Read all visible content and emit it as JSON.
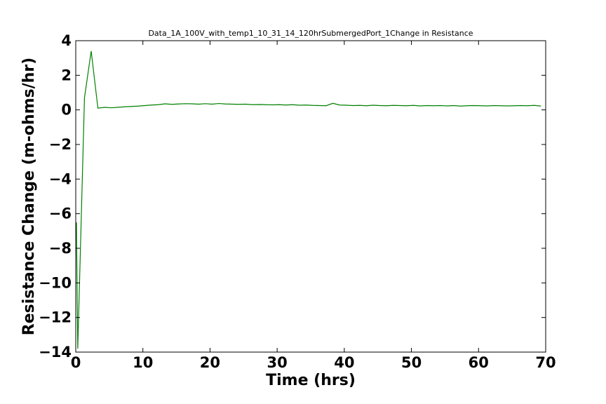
{
  "chart_data": {
    "type": "line",
    "title": "Data_1A_100V_with_temp1_10_31_14_120hrSubmergedPort_1Change in Resistance",
    "xlabel": "Time (hrs)",
    "ylabel": "Resistance Change (m-ohms/hr)",
    "xlim": [
      0,
      70
    ],
    "ylim": [
      -14,
      4
    ],
    "xticks": [
      0,
      10,
      20,
      30,
      40,
      50,
      60,
      70
    ],
    "yticks": [
      4,
      2,
      0,
      -2,
      -4,
      -6,
      -8,
      -10,
      -12,
      -14
    ],
    "grid": false,
    "series": [
      {
        "color": "#008000",
        "x": [
          0.1,
          0.3,
          1.3,
          2.3,
          3.3,
          4.3,
          5.3,
          6.3,
          7.3,
          8.3,
          9.3,
          10.3,
          11.3,
          12.3,
          13.3,
          14.3,
          15.3,
          16.3,
          17.3,
          18.3,
          19.3,
          20.3,
          21.3,
          22.3,
          23.3,
          24.3,
          25.3,
          26.3,
          27.3,
          28.3,
          29.3,
          30.3,
          31.3,
          32.3,
          33.3,
          34.3,
          35.3,
          36.3,
          37.3,
          38.3,
          39.3,
          40.3,
          41.3,
          42.3,
          43.3,
          44.3,
          45.3,
          46.3,
          47.3,
          48.3,
          49.3,
          50.3,
          51.3,
          52.3,
          53.3,
          54.3,
          55.3,
          56.3,
          57.3,
          58.3,
          59.3,
          60.3,
          61.3,
          62.3,
          63.3,
          64.3,
          65.3,
          66.3,
          67.3,
          68.3,
          69.3
        ],
        "y": [
          -6.5,
          -13.8,
          0.7,
          3.4,
          0.1,
          0.15,
          0.12,
          0.15,
          0.18,
          0.2,
          0.22,
          0.25,
          0.28,
          0.3,
          0.35,
          0.32,
          0.34,
          0.36,
          0.35,
          0.33,
          0.36,
          0.33,
          0.37,
          0.34,
          0.33,
          0.32,
          0.33,
          0.3,
          0.31,
          0.3,
          0.29,
          0.3,
          0.28,
          0.3,
          0.27,
          0.28,
          0.26,
          0.25,
          0.24,
          0.38,
          0.28,
          0.27,
          0.25,
          0.26,
          0.24,
          0.27,
          0.25,
          0.24,
          0.26,
          0.25,
          0.24,
          0.26,
          0.23,
          0.25,
          0.24,
          0.25,
          0.23,
          0.25,
          0.22,
          0.24,
          0.25,
          0.24,
          0.23,
          0.25,
          0.24,
          0.23,
          0.24,
          0.25,
          0.24,
          0.26,
          0.22
        ]
      }
    ]
  }
}
